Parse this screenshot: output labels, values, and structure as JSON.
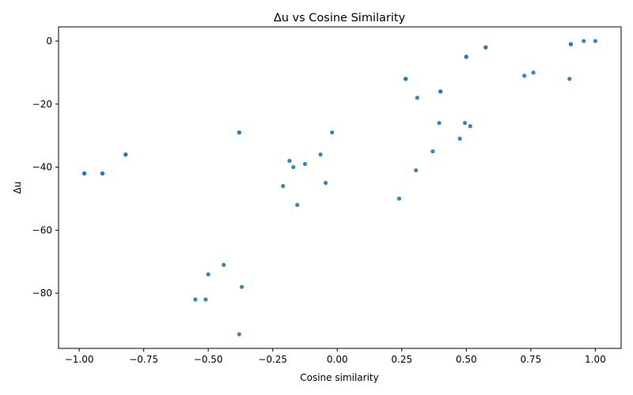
{
  "chart_data": {
    "type": "scatter",
    "title": "Δu vs Cosine Similarity",
    "xlabel": "Cosine similarity",
    "ylabel": "Δu",
    "xlim": [
      -1.08,
      1.1
    ],
    "ylim": [
      -97.5,
      4.5
    ],
    "xticks": [
      -1.0,
      -0.75,
      -0.5,
      -0.25,
      0.0,
      0.25,
      0.5,
      0.75,
      1.0
    ],
    "xtick_labels": [
      "−1.00",
      "−0.75",
      "−0.50",
      "−0.25",
      "0.00",
      "0.25",
      "0.50",
      "0.75",
      "1.00"
    ],
    "yticks": [
      0,
      -20,
      -40,
      -60,
      -80
    ],
    "ytick_labels": [
      "0",
      "−20",
      "−40",
      "−60",
      "−80"
    ],
    "grid": false,
    "marker_color": "#1f77b4",
    "points": [
      {
        "x": -0.98,
        "y": -42
      },
      {
        "x": -0.98,
        "y": -42
      },
      {
        "x": -0.91,
        "y": -42
      },
      {
        "x": -0.91,
        "y": -42
      },
      {
        "x": -0.82,
        "y": -36
      },
      {
        "x": -0.82,
        "y": -36
      },
      {
        "x": -0.55,
        "y": -82
      },
      {
        "x": -0.51,
        "y": -82
      },
      {
        "x": -0.5,
        "y": -74
      },
      {
        "x": -0.44,
        "y": -71
      },
      {
        "x": -0.38,
        "y": -29
      },
      {
        "x": -0.38,
        "y": -29
      },
      {
        "x": -0.38,
        "y": -93
      },
      {
        "x": -0.37,
        "y": -78
      },
      {
        "x": -0.21,
        "y": -46
      },
      {
        "x": -0.185,
        "y": -38
      },
      {
        "x": -0.17,
        "y": -40
      },
      {
        "x": -0.155,
        "y": -52
      },
      {
        "x": -0.125,
        "y": -39
      },
      {
        "x": -0.065,
        "y": -36
      },
      {
        "x": -0.045,
        "y": -45
      },
      {
        "x": -0.02,
        "y": -29
      },
      {
        "x": 0.24,
        "y": -50
      },
      {
        "x": 0.265,
        "y": -12
      },
      {
        "x": 0.265,
        "y": -12
      },
      {
        "x": 0.305,
        "y": -41
      },
      {
        "x": 0.31,
        "y": -18
      },
      {
        "x": 0.37,
        "y": -35
      },
      {
        "x": 0.395,
        "y": -26
      },
      {
        "x": 0.4,
        "y": -16
      },
      {
        "x": 0.4,
        "y": -16
      },
      {
        "x": 0.475,
        "y": -31
      },
      {
        "x": 0.495,
        "y": -26
      },
      {
        "x": 0.5,
        "y": -5
      },
      {
        "x": 0.5,
        "y": -5
      },
      {
        "x": 0.515,
        "y": -27
      },
      {
        "x": 0.575,
        "y": -2
      },
      {
        "x": 0.575,
        "y": -2
      },
      {
        "x": 0.725,
        "y": -11
      },
      {
        "x": 0.76,
        "y": -10
      },
      {
        "x": 0.9,
        "y": -12
      },
      {
        "x": 0.905,
        "y": -1
      },
      {
        "x": 0.905,
        "y": -1
      },
      {
        "x": 0.955,
        "y": 0
      },
      {
        "x": 1.0,
        "y": 0
      }
    ]
  }
}
